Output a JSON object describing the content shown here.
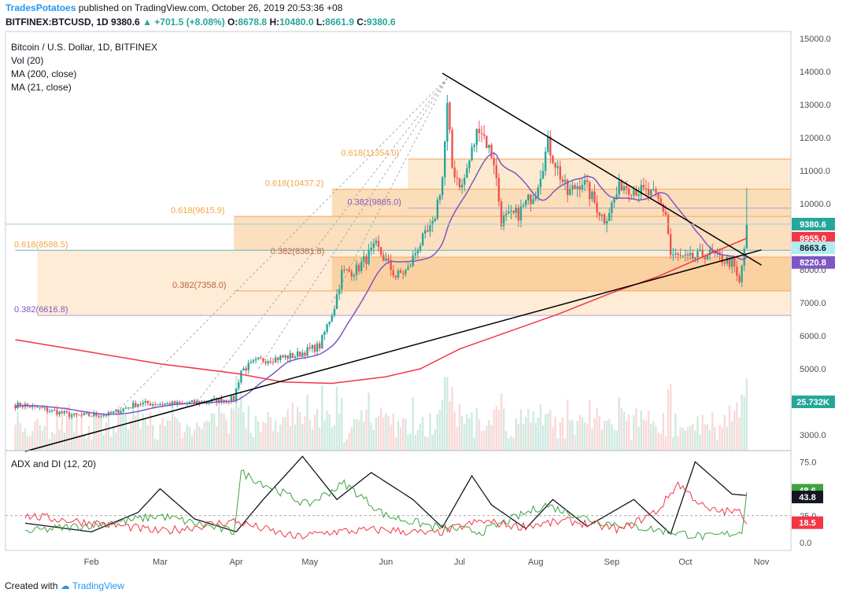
{
  "header": {
    "author": "TradesPotatoes",
    "published": "published on TradingView.com, October 26, 2019 20:53:36 +08",
    "symbol_line": "BITFINEX:BTCUSD, 1D",
    "last": "9380.6",
    "change": "+701.5 (+8.08%)",
    "ohlc": {
      "o_label": "O:",
      "o": "8678.8",
      "h_label": "H:",
      "h": "10480.0",
      "l_label": "L:",
      "l": "8661.9",
      "c_label": "C:",
      "c": "9380.6"
    }
  },
  "legend": {
    "title": "Bitcoin / U.S. Dollar, 1D, BITFINEX",
    "vol": "Vol (20)",
    "ma200": "MA (200, close)",
    "ma21": "MA (21, close)"
  },
  "adx_label": "ADX and DI (12, 20)",
  "footer": {
    "created": "Created with",
    "tv": "TradingView"
  },
  "colors": {
    "up": "#26a69a",
    "down": "#ef5350",
    "ma200": "#f23645",
    "ma21": "#7e57c2",
    "fib": "#f7a440",
    "trend": "#000000",
    "adx": "#131722",
    "di_plus": "#3fa33f",
    "di_minus": "#f23645"
  },
  "chart_data": [
    {
      "type": "candlestick",
      "title": "Bitcoin / U.S. Dollar, 1D, BITFINEX",
      "y_ticks": [
        "3000.0",
        "4000.0",
        "5000.0",
        "6000.0",
        "7000.0",
        "8000.0",
        "9000.0",
        "10000.0",
        "11000.0",
        "12000.0",
        "13000.0",
        "14000.0",
        "15000.0"
      ],
      "ylim": [
        2500,
        15250
      ],
      "x_labels": [
        "Feb",
        "Mar",
        "Apr",
        "May",
        "Jun",
        "Jul",
        "Aug",
        "Sep",
        "Oct",
        "Nov"
      ],
      "price_path": {
        "dates": [
          "2019-01-05",
          "2019-01-25",
          "2019-02-08",
          "2019-02-20",
          "2019-03-10",
          "2019-03-31",
          "2019-04-03",
          "2019-04-10",
          "2019-04-25",
          "2019-05-05",
          "2019-05-11",
          "2019-05-14",
          "2019-05-20",
          "2019-05-28",
          "2019-06-05",
          "2019-06-10",
          "2019-06-14",
          "2019-06-20",
          "2019-06-24",
          "2019-06-26",
          "2019-06-28",
          "2019-07-02",
          "2019-07-09",
          "2019-07-15",
          "2019-07-18",
          "2019-07-25",
          "2019-08-01",
          "2019-08-06",
          "2019-08-14",
          "2019-08-20",
          "2019-08-29",
          "2019-09-05",
          "2019-09-12",
          "2019-09-19",
          "2019-09-23",
          "2019-09-25",
          "2019-10-02",
          "2019-10-10",
          "2019-10-20",
          "2019-10-23",
          "2019-10-25",
          "2019-10-26"
        ],
        "close": [
          3900,
          3580,
          3620,
          3950,
          3940,
          4100,
          4950,
          5250,
          5400,
          5700,
          6900,
          7900,
          8000,
          8700,
          7800,
          8000,
          8700,
          9300,
          10800,
          12900,
          11100,
          10500,
          12400,
          11300,
          9500,
          9700,
          10400,
          11800,
          10300,
          10700,
          9500,
          10600,
          10400,
          10200,
          9700,
          8450,
          8300,
          8500,
          8200,
          7550,
          8660,
          9380
        ]
      },
      "last_price_label": "9380.6",
      "labels_right": {
        "ma200": "8955.0",
        "ma21": "8220.8",
        "level": "8663.6",
        "volume": "25.732K"
      },
      "fib_levels": [
        {
          "label": "0.618(11354.0)",
          "value": 11354.0,
          "from": "2019-06-10"
        },
        {
          "label": "0.618(10437.2)",
          "value": 10437.2,
          "from": "2019-05-10"
        },
        {
          "label": "0.382(9865.0)",
          "value": 9865.0,
          "from": "2019-06-10"
        },
        {
          "label": "0.618(9615.9)",
          "value": 9615.9,
          "from": "2019-03-31"
        },
        {
          "label": "0.618(8588.5)",
          "value": 8588.5,
          "from": "2019-01-01"
        },
        {
          "label": "0.382(8381.8)",
          "value": 8381.8,
          "from": "2019-05-10"
        },
        {
          "label": "0.382(7358.0)",
          "value": 7358.0,
          "from": "2019-03-31"
        },
        {
          "label": "0.382(6616.8)",
          "value": 6616.8,
          "from": "2019-01-10"
        }
      ],
      "ma200_path": {
        "dates": [
          "2019-01-01",
          "2019-02-01",
          "2019-03-01",
          "2019-04-01",
          "2019-04-20",
          "2019-05-10",
          "2019-06-01",
          "2019-06-15",
          "2019-07-01",
          "2019-07-20",
          "2019-08-10",
          "2019-09-01",
          "2019-09-20",
          "2019-10-10",
          "2019-10-26"
        ],
        "values": [
          5880,
          5500,
          5150,
          4860,
          4600,
          4560,
          4760,
          5000,
          5600,
          6100,
          6650,
          7300,
          7800,
          8450,
          8955
        ]
      },
      "trendlines": [
        {
          "from_date": "2019-01-05",
          "from_value": 2500,
          "to_date": "2019-11-01",
          "to_value": 8600
        },
        {
          "from_date": "2019-06-24",
          "from_value": 13950,
          "to_date": "2019-11-01",
          "to_value": 8140
        }
      ]
    },
    {
      "type": "line",
      "title": "ADX and DI (12, 20)",
      "y_ticks": [
        "0.0",
        "25.0",
        "50.0",
        "75.0"
      ],
      "ylim": [
        -5,
        85
      ],
      "labels_right": {
        "di_plus": "48.6",
        "adx": "43.8",
        "di_minus": "18.5"
      },
      "series": [
        {
          "name": "",
          "key": "adx",
          "dates": [
            "2019-01-05",
            "2019-02-01",
            "2019-02-20",
            "2019-03-01",
            "2019-03-15",
            "2019-04-01",
            "2019-04-12",
            "2019-04-28",
            "2019-05-12",
            "2019-05-26",
            "2019-06-12",
            "2019-06-24",
            "2019-07-06",
            "2019-07-14",
            "2019-07-28",
            "2019-08-08",
            "2019-08-22",
            "2019-09-10",
            "2019-09-25",
            "2019-10-05",
            "2019-10-20",
            "2019-10-26"
          ],
          "values": [
            18,
            10,
            28,
            50,
            22,
            10,
            40,
            80,
            40,
            65,
            40,
            14,
            62,
            35,
            13,
            40,
            15,
            40,
            8,
            75,
            45,
            43.8
          ]
        },
        {
          "name": "",
          "key": "di_plus",
          "dates": [
            "2019-01-05",
            "2019-02-15",
            "2019-03-01",
            "2019-03-31",
            "2019-04-03",
            "2019-04-30",
            "2019-05-15",
            "2019-06-01",
            "2019-06-20",
            "2019-07-10",
            "2019-08-05",
            "2019-08-25",
            "2019-09-10",
            "2019-09-25",
            "2019-10-10",
            "2019-10-24",
            "2019-10-26"
          ],
          "values": [
            10,
            20,
            25,
            10,
            65,
            35,
            55,
            25,
            15,
            10,
            35,
            20,
            15,
            10,
            5,
            10,
            48.6
          ]
        },
        {
          "name": "",
          "key": "di_minus",
          "dates": [
            "2019-01-05",
            "2019-02-15",
            "2019-03-01",
            "2019-03-31",
            "2019-04-25",
            "2019-05-10",
            "2019-06-01",
            "2019-06-20",
            "2019-07-10",
            "2019-07-25",
            "2019-08-15",
            "2019-09-05",
            "2019-09-20",
            "2019-09-28",
            "2019-10-10",
            "2019-10-24",
            "2019-10-26"
          ],
          "values": [
            25,
            15,
            10,
            20,
            5,
            10,
            12,
            8,
            20,
            15,
            20,
            12,
            30,
            55,
            30,
            28,
            18.5
          ]
        }
      ]
    }
  ]
}
